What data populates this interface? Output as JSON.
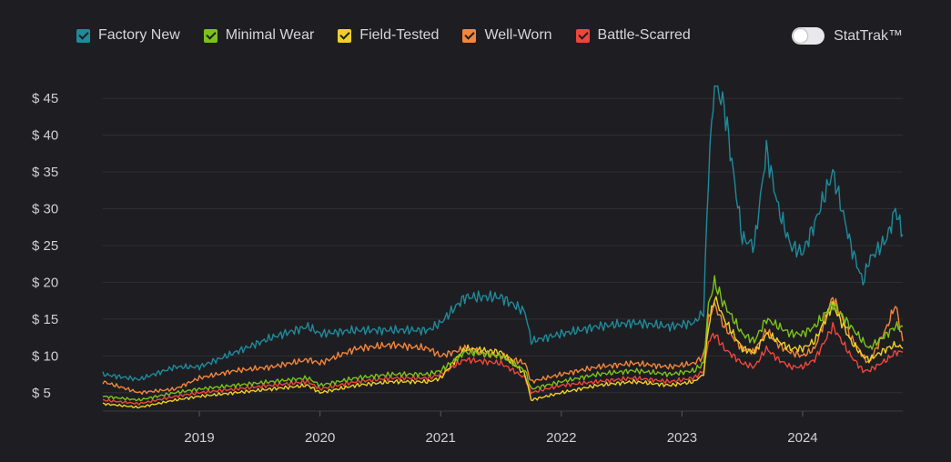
{
  "legend": [
    {
      "label": "Factory New",
      "color": "#1f8a9a"
    },
    {
      "label": "Minimal Wear",
      "color": "#7cc21a"
    },
    {
      "label": "Field-Tested",
      "color": "#f0cf27"
    },
    {
      "label": "Well-Worn",
      "color": "#f5853a"
    },
    {
      "label": "Battle-Scarred",
      "color": "#f0453a"
    }
  ],
  "stattrak": {
    "label": "StatTrak™",
    "enabled": false
  },
  "chart_data": {
    "type": "line",
    "x_range": [
      2018.2,
      2024.83
    ],
    "ylim": [
      2.5,
      47.5
    ],
    "y_ticks": [
      5,
      10,
      15,
      20,
      25,
      30,
      35,
      40,
      45
    ],
    "y_tick_labels": [
      "$ 5",
      "$ 10",
      "$ 15",
      "$ 20",
      "$ 25",
      "$ 30",
      "$ 35",
      "$ 40",
      "$ 45"
    ],
    "x_ticks": [
      2019,
      2020,
      2021,
      2022,
      2023,
      2024
    ],
    "x_tick_labels": [
      "2019",
      "2020",
      "2021",
      "2022",
      "2023",
      "2024"
    ],
    "grid": true,
    "legend_position": "top",
    "x": [
      2018.2,
      2018.5,
      2018.8,
      2019.0,
      2019.3,
      2019.6,
      2019.9,
      2020.0,
      2020.3,
      2020.6,
      2020.9,
      2021.0,
      2021.2,
      2021.5,
      2021.7,
      2021.75,
      2022.0,
      2022.3,
      2022.6,
      2022.9,
      2023.1,
      2023.18,
      2023.22,
      2023.27,
      2023.35,
      2023.5,
      2023.6,
      2023.7,
      2023.8,
      2023.9,
      2024.0,
      2024.1,
      2024.25,
      2024.4,
      2024.5,
      2024.55,
      2024.7,
      2024.77,
      2024.83
    ],
    "series": [
      {
        "name": "Factory New",
        "values": [
          7.5,
          6.8,
          8.5,
          8.5,
          10.5,
          12.5,
          14.0,
          13.0,
          13.5,
          13.5,
          13.5,
          14.5,
          18.0,
          18.0,
          16.0,
          12.0,
          13.0,
          14.0,
          14.5,
          14.0,
          14.5,
          16.0,
          35.0,
          47.0,
          44.0,
          26.0,
          25.0,
          38.0,
          30.0,
          25.0,
          24.0,
          28.0,
          35.0,
          25.0,
          20.0,
          23.0,
          26.0,
          30.0,
          26.5
        ]
      },
      {
        "name": "Minimal Wear",
        "values": [
          4.5,
          4.0,
          5.0,
          5.5,
          6.0,
          6.5,
          7.0,
          6.0,
          7.0,
          7.5,
          7.5,
          8.0,
          10.5,
          10.0,
          8.0,
          5.5,
          6.5,
          7.5,
          8.0,
          7.5,
          8.0,
          9.0,
          17.0,
          20.0,
          17.0,
          13.0,
          12.0,
          15.0,
          14.0,
          13.0,
          13.0,
          14.0,
          17.0,
          14.0,
          12.0,
          11.0,
          13.0,
          14.0,
          14.0
        ]
      },
      {
        "name": "Field-Tested",
        "values": [
          3.5,
          3.0,
          4.0,
          4.5,
          5.0,
          5.5,
          6.0,
          5.0,
          6.0,
          6.5,
          6.5,
          7.0,
          11.0,
          10.5,
          7.5,
          4.0,
          5.0,
          6.0,
          6.5,
          6.0,
          6.5,
          7.5,
          14.0,
          18.0,
          15.0,
          11.0,
          10.5,
          13.0,
          12.0,
          11.0,
          11.0,
          12.0,
          17.0,
          12.0,
          10.0,
          9.5,
          11.0,
          11.5,
          11.0
        ]
      },
      {
        "name": "Well-Worn",
        "values": [
          6.5,
          5.0,
          5.5,
          7.0,
          8.0,
          8.5,
          9.5,
          9.0,
          11.0,
          11.5,
          11.0,
          10.0,
          11.0,
          10.0,
          9.0,
          6.5,
          7.5,
          8.5,
          9.0,
          8.5,
          9.0,
          10.0,
          15.0,
          17.0,
          14.0,
          11.0,
          10.5,
          13.5,
          11.5,
          10.5,
          10.0,
          11.0,
          18.0,
          12.5,
          10.0,
          9.0,
          14.0,
          17.0,
          12.0
        ]
      },
      {
        "name": "Battle-Scarred",
        "values": [
          4.0,
          3.5,
          4.5,
          5.0,
          5.5,
          6.0,
          6.5,
          5.5,
          6.5,
          7.0,
          7.0,
          7.5,
          9.5,
          9.0,
          7.0,
          5.0,
          6.0,
          6.5,
          7.0,
          6.5,
          7.0,
          8.0,
          12.0,
          13.0,
          11.0,
          9.0,
          8.5,
          11.0,
          9.5,
          8.5,
          8.5,
          9.5,
          14.0,
          10.0,
          8.0,
          8.0,
          9.5,
          10.5,
          10.5
        ]
      }
    ]
  }
}
